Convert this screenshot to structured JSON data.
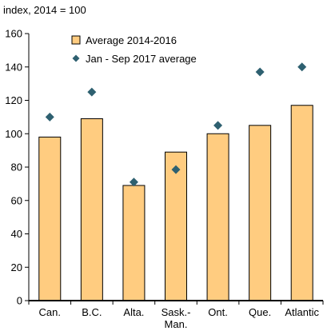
{
  "chart_data": {
    "type": "bar",
    "unit_label": "index, 2014 = 100",
    "categories": [
      [
        "Can."
      ],
      [
        "B.C."
      ],
      [
        "Alta."
      ],
      [
        "Sask.-",
        "Man."
      ],
      [
        "Ont."
      ],
      [
        "Que."
      ],
      [
        "Atlantic"
      ]
    ],
    "series": [
      {
        "name": "Average 2014-2016",
        "kind": "bar",
        "color": "#FFCC80",
        "stroke": "#000000",
        "values": [
          98,
          109,
          69,
          89,
          100,
          105,
          117
        ]
      },
      {
        "name": "Jan - Sep 2017 average",
        "kind": "marker",
        "marker": "diamond",
        "color": "#2E6070",
        "values": [
          110,
          125,
          71,
          78.5,
          105,
          137,
          140
        ]
      }
    ],
    "ylim": [
      0,
      160
    ],
    "yticks": [
      0,
      20,
      40,
      60,
      80,
      100,
      120,
      140,
      160
    ],
    "grid": false,
    "legend": "top-left"
  }
}
